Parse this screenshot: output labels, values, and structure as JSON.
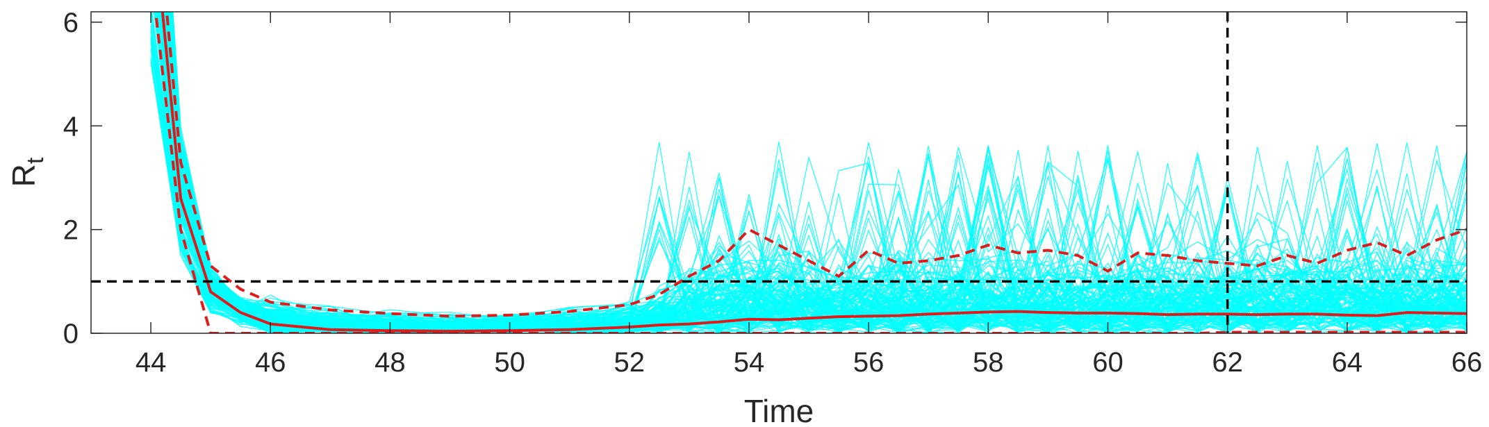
{
  "chart_data": {
    "type": "line",
    "title": "",
    "xlabel": "Time",
    "ylabel": "R",
    "ylabel_subscript": "t",
    "xlim": [
      43,
      66
    ],
    "ylim": [
      0,
      6.2
    ],
    "xticks": [
      44,
      46,
      48,
      50,
      52,
      54,
      56,
      58,
      60,
      62,
      64,
      66
    ],
    "yticks": [
      0,
      2,
      4,
      6
    ],
    "grid": false,
    "legend": "none",
    "colors": {
      "samples": "#00ffff",
      "median": "#dd1c1c",
      "reference": "#000000"
    },
    "reference_lines": {
      "horizontal_y": 1,
      "vertical_x": 62
    },
    "x": [
      44.0,
      44.5,
      45.0,
      45.5,
      46.0,
      47.0,
      48.0,
      49.0,
      50.0,
      51.0,
      52.0,
      52.5,
      53.0,
      53.5,
      54.0,
      54.5,
      55.0,
      55.5,
      56.0,
      56.5,
      57.0,
      57.5,
      58.0,
      58.5,
      59.0,
      59.5,
      60.0,
      60.5,
      61.0,
      61.5,
      62.0,
      62.5,
      63.0,
      63.5,
      64.0,
      64.5,
      65.0,
      65.5,
      66.0
    ],
    "series": [
      {
        "style": "solid",
        "values": [
          8.5,
          2.6,
          0.8,
          0.4,
          0.18,
          0.07,
          0.05,
          0.04,
          0.05,
          0.07,
          0.12,
          0.16,
          0.18,
          0.22,
          0.27,
          0.26,
          0.29,
          0.32,
          0.33,
          0.34,
          0.37,
          0.39,
          0.41,
          0.42,
          0.4,
          0.39,
          0.39,
          0.38,
          0.36,
          0.37,
          0.37,
          0.36,
          0.37,
          0.37,
          0.35,
          0.34,
          0.4,
          0.39,
          0.38
        ]
      },
      {
        "style": "dashed",
        "values": [
          9.5,
          3.3,
          1.3,
          0.85,
          0.6,
          0.45,
          0.38,
          0.33,
          0.35,
          0.42,
          0.55,
          0.75,
          1.1,
          1.4,
          2.0,
          1.7,
          1.4,
          1.1,
          1.6,
          1.35,
          1.4,
          1.5,
          1.7,
          1.55,
          1.6,
          1.5,
          1.2,
          1.55,
          1.5,
          1.4,
          1.35,
          1.3,
          1.5,
          1.35,
          1.6,
          1.75,
          1.5,
          1.8,
          2.0
        ]
      },
      {
        "style": "dashed",
        "values": [
          7.0,
          2.0,
          0.0,
          0.0,
          0.0,
          0.0,
          0.0,
          0.0,
          0.0,
          0.0,
          0.0,
          0.0,
          0.0,
          0.0,
          0.0,
          0.0,
          0.0,
          0.0,
          0.0,
          0.0,
          0.0,
          0.0,
          0.0,
          0.0,
          0.0,
          0.0,
          0.0,
          0.0,
          0.0,
          0.0,
          0.02,
          0.02,
          0.02,
          0.02,
          0.02,
          0.02,
          0.02,
          0.02,
          0.02
        ]
      }
    ]
  }
}
